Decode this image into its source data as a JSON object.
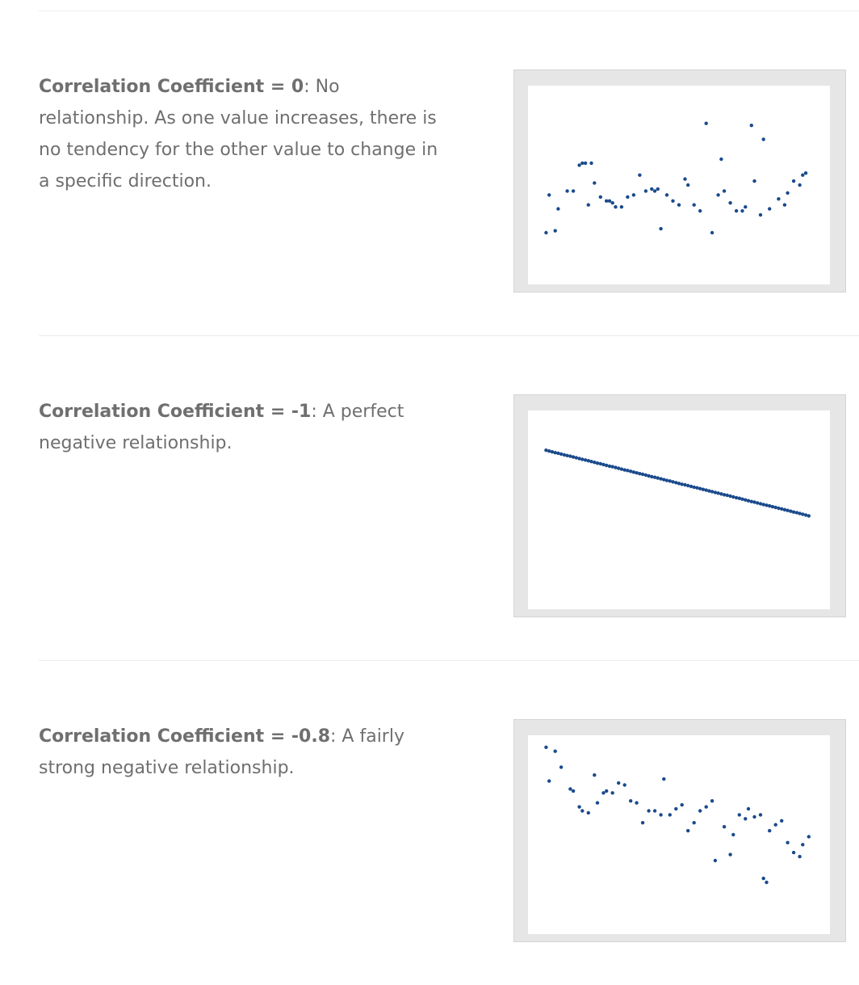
{
  "colors": {
    "point": "#1a4a8c",
    "frame": "#e6e6e6",
    "text": "#6f6f6f"
  },
  "items": [
    {
      "label": "Correlation Coefficient = 0",
      "text": ": No relationship. As one value increases, there is no tendency for the other value to change in a specific direction."
    },
    {
      "label": "Correlation Coefficient = -1",
      "text": ": A perfect negative relationship."
    },
    {
      "label": "Correlation Coefficient = -0.8",
      "text": ": A fairly strong negative relationship."
    }
  ],
  "chart_data": [
    {
      "type": "scatter",
      "xlim": [
        0,
        100
      ],
      "ylim": [
        0,
        100
      ],
      "points": [
        [
          6,
          26
        ],
        [
          9,
          27
        ],
        [
          7,
          45
        ],
        [
          10,
          38
        ],
        [
          13,
          47
        ],
        [
          15,
          47
        ],
        [
          17,
          60
        ],
        [
          18,
          61
        ],
        [
          19,
          61
        ],
        [
          21,
          61
        ],
        [
          20,
          40
        ],
        [
          22,
          51
        ],
        [
          24,
          44
        ],
        [
          26,
          42
        ],
        [
          27,
          42
        ],
        [
          28,
          41
        ],
        [
          29,
          39
        ],
        [
          31,
          39
        ],
        [
          33,
          44
        ],
        [
          35,
          45
        ],
        [
          37,
          55
        ],
        [
          39,
          47
        ],
        [
          41,
          48
        ],
        [
          42,
          47
        ],
        [
          43,
          48
        ],
        [
          44,
          28
        ],
        [
          46,
          45
        ],
        [
          48,
          42
        ],
        [
          50,
          40
        ],
        [
          52,
          53
        ],
        [
          53,
          50
        ],
        [
          55,
          40
        ],
        [
          57,
          37
        ],
        [
          59,
          81
        ],
        [
          61,
          26
        ],
        [
          63,
          45
        ],
        [
          64,
          63
        ],
        [
          65,
          47
        ],
        [
          67,
          41
        ],
        [
          69,
          37
        ],
        [
          71,
          37
        ],
        [
          72,
          39
        ],
        [
          74,
          80
        ],
        [
          75,
          52
        ],
        [
          77,
          35
        ],
        [
          78,
          73
        ],
        [
          80,
          38
        ],
        [
          83,
          43
        ],
        [
          85,
          40
        ],
        [
          86,
          46
        ],
        [
          88,
          52
        ],
        [
          90,
          50
        ],
        [
          91,
          55
        ],
        [
          92,
          56
        ]
      ]
    },
    {
      "type": "scatter",
      "xlim": [
        0,
        100
      ],
      "ylim": [
        0,
        100
      ],
      "points": [
        [
          6,
          80
        ],
        [
          7,
          79.6
        ],
        [
          8,
          79.2
        ],
        [
          9,
          78.8
        ],
        [
          10,
          78.5
        ],
        [
          11,
          78.1
        ],
        [
          12,
          77.7
        ],
        [
          13,
          77.3
        ],
        [
          14,
          77
        ],
        [
          15,
          76.6
        ],
        [
          16,
          76.2
        ],
        [
          17,
          75.8
        ],
        [
          18,
          75.4
        ],
        [
          19,
          75.1
        ],
        [
          20,
          74.7
        ],
        [
          21,
          74.3
        ],
        [
          22,
          73.9
        ],
        [
          23,
          73.5
        ],
        [
          24,
          73.2
        ],
        [
          25,
          72.8
        ],
        [
          26,
          72.4
        ],
        [
          27,
          72
        ],
        [
          28,
          71.7
        ],
        [
          29,
          71.3
        ],
        [
          30,
          70.9
        ],
        [
          31,
          70.5
        ],
        [
          32,
          70.1
        ],
        [
          33,
          69.8
        ],
        [
          34,
          69.4
        ],
        [
          35,
          69
        ],
        [
          36,
          68.6
        ],
        [
          37,
          68.2
        ],
        [
          38,
          67.9
        ],
        [
          39,
          67.5
        ],
        [
          40,
          67.1
        ],
        [
          41,
          66.7
        ],
        [
          42,
          66.4
        ],
        [
          43,
          66
        ],
        [
          44,
          65.6
        ],
        [
          45,
          65.2
        ],
        [
          46,
          64.8
        ],
        [
          47,
          64.5
        ],
        [
          48,
          64.1
        ],
        [
          49,
          63.7
        ],
        [
          50,
          63.3
        ],
        [
          51,
          62.9
        ],
        [
          52,
          62.6
        ],
        [
          53,
          62.2
        ],
        [
          54,
          61.8
        ],
        [
          55,
          61.4
        ],
        [
          56,
          61.1
        ],
        [
          57,
          60.7
        ],
        [
          58,
          60.3
        ],
        [
          59,
          59.9
        ],
        [
          60,
          59.5
        ],
        [
          61,
          59.2
        ],
        [
          62,
          58.8
        ],
        [
          63,
          58.4
        ],
        [
          64,
          58
        ],
        [
          65,
          57.6
        ],
        [
          66,
          57.3
        ],
        [
          67,
          56.9
        ],
        [
          68,
          56.5
        ],
        [
          69,
          56.1
        ],
        [
          70,
          55.8
        ],
        [
          71,
          55.4
        ],
        [
          72,
          55
        ],
        [
          73,
          54.6
        ],
        [
          74,
          54.2
        ],
        [
          75,
          53.9
        ],
        [
          76,
          53.5
        ],
        [
          77,
          53.1
        ],
        [
          78,
          52.7
        ],
        [
          79,
          52.3
        ],
        [
          80,
          52
        ],
        [
          81,
          51.6
        ],
        [
          82,
          51.2
        ],
        [
          83,
          50.8
        ],
        [
          84,
          50.5
        ],
        [
          85,
          50.1
        ],
        [
          86,
          49.7
        ],
        [
          87,
          49.3
        ],
        [
          88,
          48.9
        ],
        [
          89,
          48.6
        ],
        [
          90,
          48.2
        ],
        [
          91,
          47.8
        ],
        [
          92,
          47.4
        ],
        [
          93,
          47
        ]
      ]
    },
    {
      "type": "scatter",
      "xlim": [
        0,
        100
      ],
      "ylim": [
        0,
        100
      ],
      "points": [
        [
          6,
          94
        ],
        [
          9,
          92
        ],
        [
          7,
          77
        ],
        [
          11,
          84
        ],
        [
          14,
          73
        ],
        [
          15,
          72
        ],
        [
          17,
          64
        ],
        [
          18,
          62
        ],
        [
          20,
          61
        ],
        [
          22,
          80
        ],
        [
          23,
          66
        ],
        [
          25,
          71
        ],
        [
          26,
          72
        ],
        [
          28,
          71
        ],
        [
          30,
          76
        ],
        [
          32,
          75
        ],
        [
          34,
          67
        ],
        [
          36,
          66
        ],
        [
          38,
          56
        ],
        [
          40,
          62
        ],
        [
          42,
          62
        ],
        [
          44,
          60
        ],
        [
          45,
          78
        ],
        [
          47,
          60
        ],
        [
          49,
          63
        ],
        [
          51,
          65
        ],
        [
          53,
          52
        ],
        [
          55,
          56
        ],
        [
          57,
          62
        ],
        [
          59,
          64
        ],
        [
          61,
          67
        ],
        [
          62,
          37
        ],
        [
          65,
          54
        ],
        [
          67,
          40
        ],
        [
          68,
          50
        ],
        [
          70,
          60
        ],
        [
          72,
          58
        ],
        [
          73,
          63
        ],
        [
          75,
          59
        ],
        [
          77,
          60
        ],
        [
          78,
          28
        ],
        [
          79,
          26
        ],
        [
          80,
          52
        ],
        [
          82,
          55
        ],
        [
          84,
          57
        ],
        [
          86,
          46
        ],
        [
          88,
          41
        ],
        [
          90,
          39
        ],
        [
          91,
          45
        ],
        [
          93,
          49
        ]
      ]
    }
  ]
}
